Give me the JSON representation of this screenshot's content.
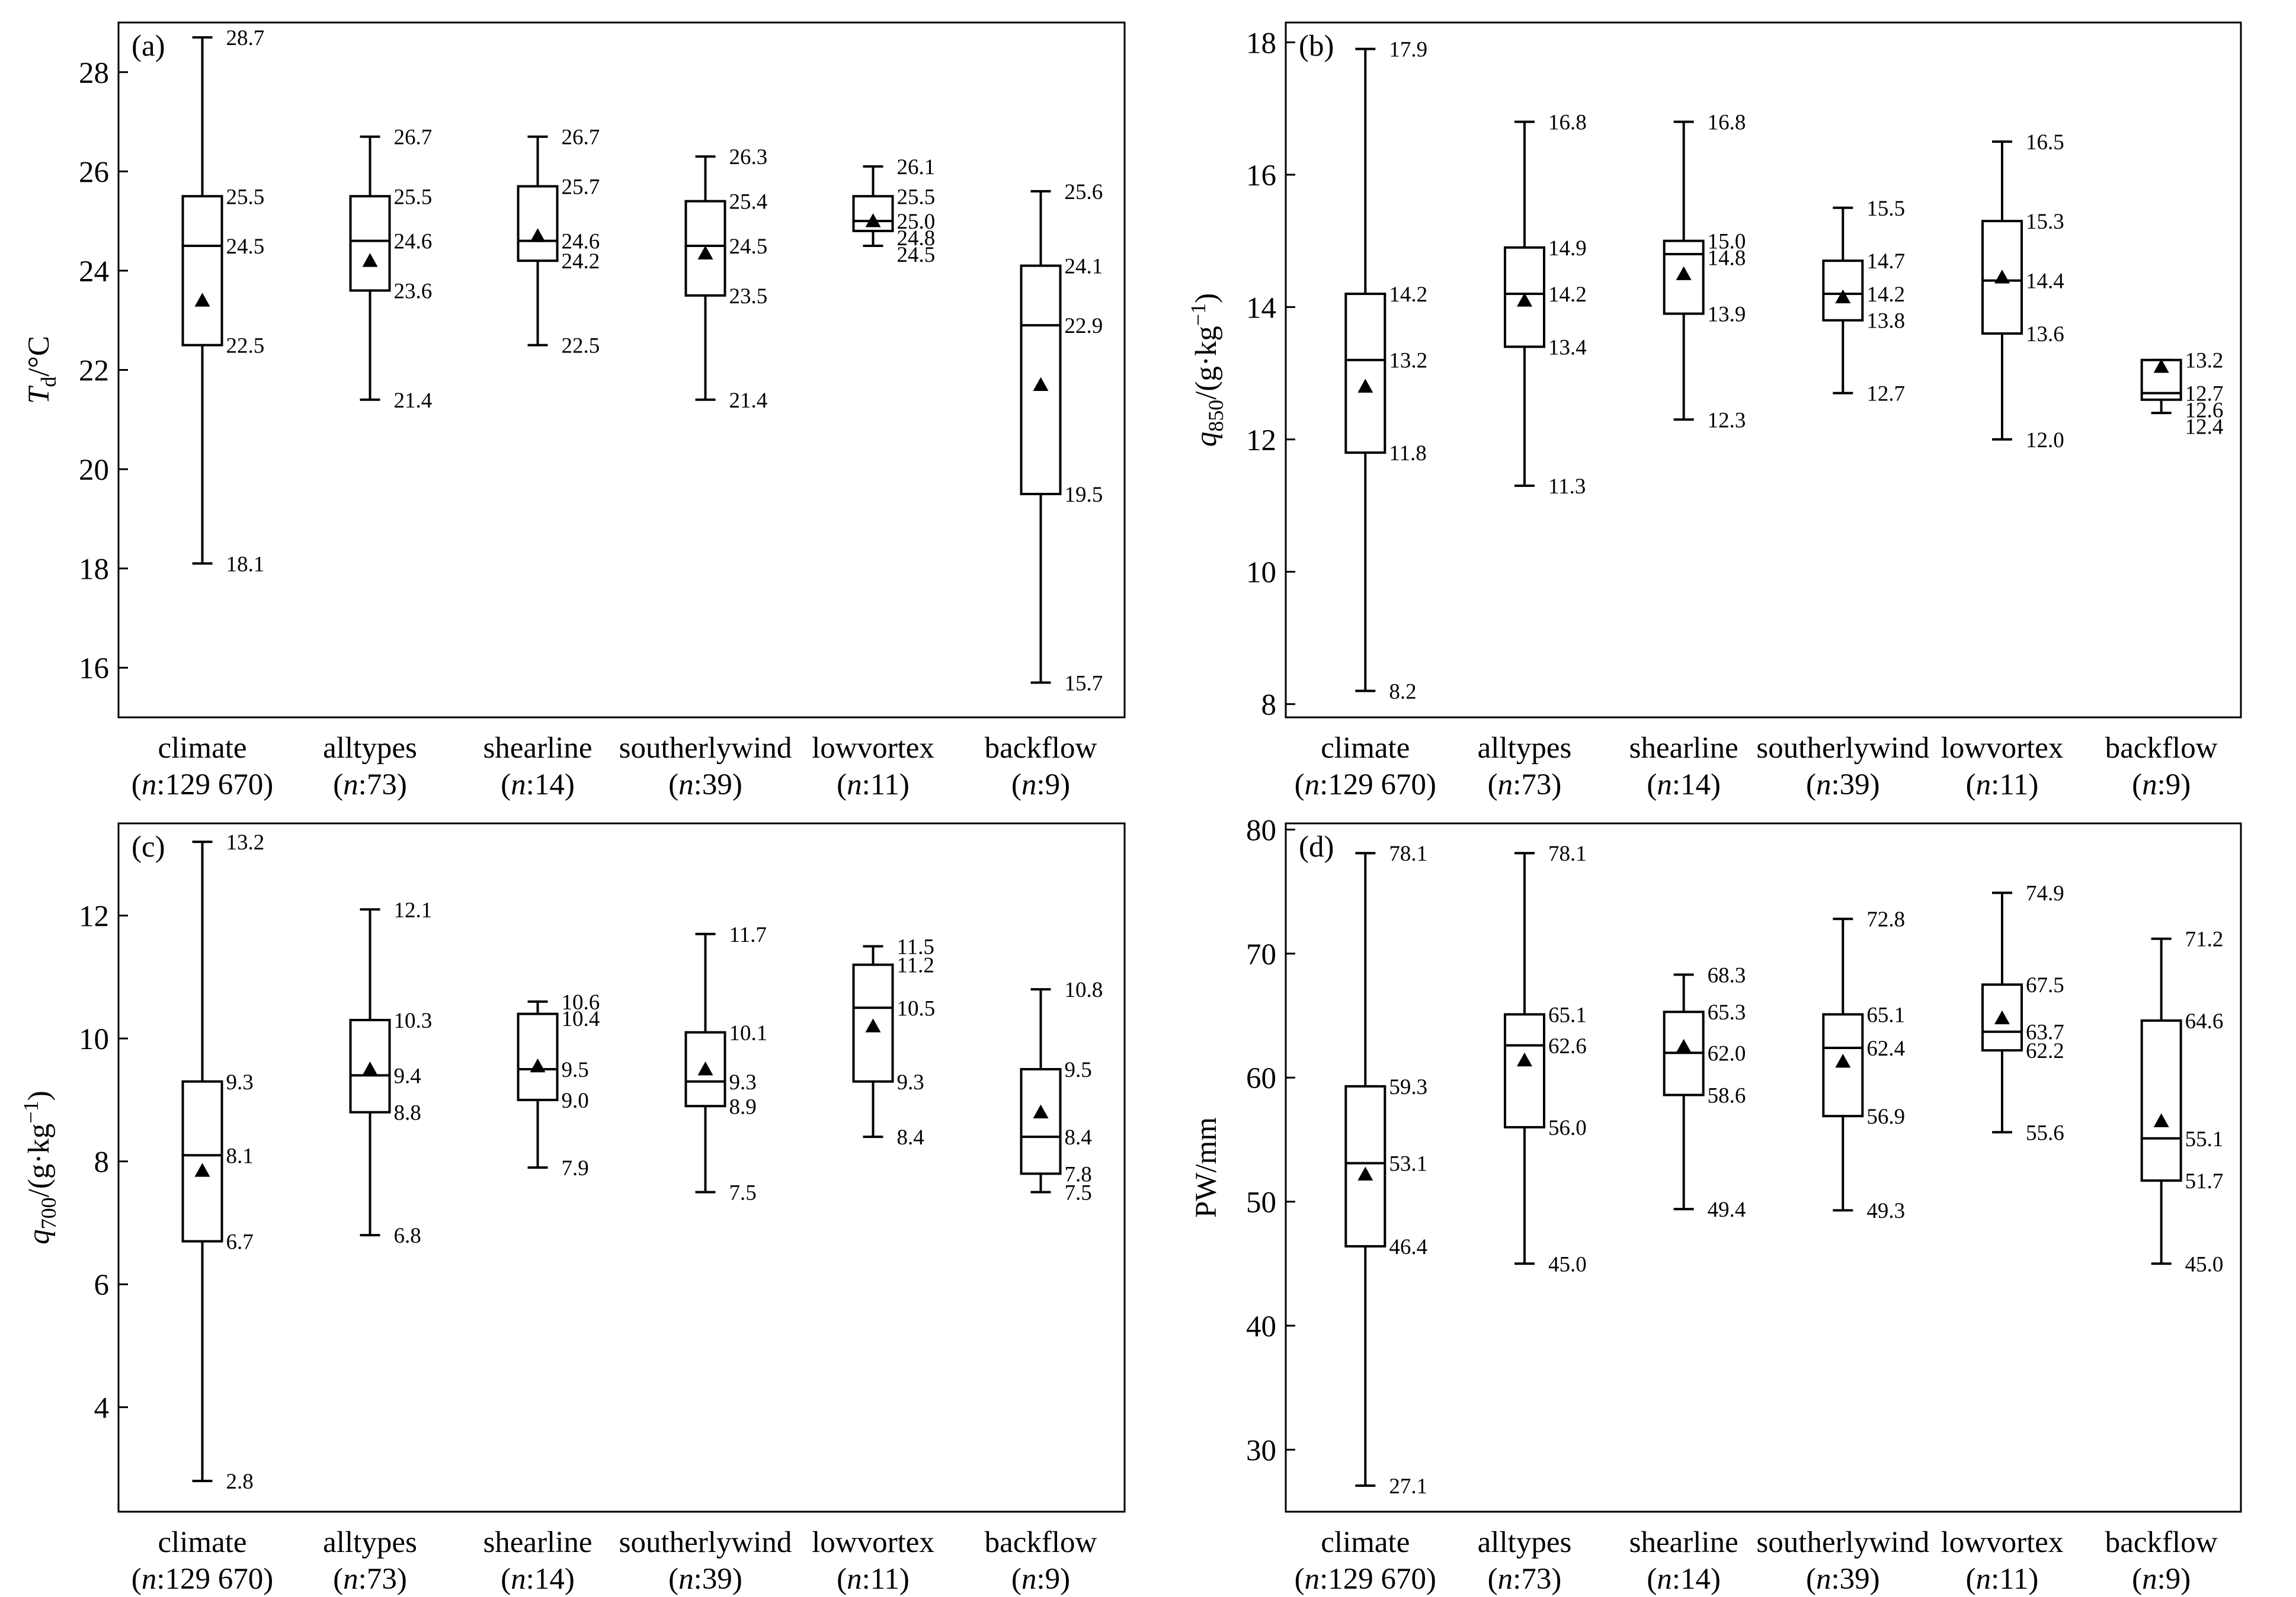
{
  "chart_data": [
    {
      "type": "box",
      "panel_label": "(a)",
      "ylabel": {
        "main": "T",
        "sub": "d",
        "rest": "/°C"
      },
      "ylim": [
        15,
        29
      ],
      "yticks": [
        16,
        18,
        20,
        22,
        24,
        26,
        28
      ],
      "categories": [
        {
          "name": "climate",
          "n_prefix": "n",
          "n_value": ":129 670"
        },
        {
          "name": "alltypes",
          "n_prefix": "n",
          "n_value": ":73"
        },
        {
          "name": "shearline",
          "n_prefix": "n",
          "n_value": ":14"
        },
        {
          "name": "southerlywind",
          "n_prefix": "n",
          "n_value": ":39"
        },
        {
          "name": "lowvortex",
          "n_prefix": "n",
          "n_value": ":11"
        },
        {
          "name": "backflow",
          "n_prefix": "n",
          "n_value": ":9"
        }
      ],
      "boxes": [
        {
          "max": 28.7,
          "q3": 25.5,
          "median": 24.5,
          "q1": 22.5,
          "min": 18.1,
          "mean": 23.4,
          "labels": {
            "max": "28.7",
            "q3": "25.5",
            "median": "24.5",
            "q1": "22.5",
            "min": "18.1"
          }
        },
        {
          "max": 26.7,
          "q3": 25.5,
          "median": 24.6,
          "q1": 23.6,
          "min": 21.4,
          "mean": 24.2,
          "labels": {
            "max": "26.7",
            "q3": "25.5",
            "median": "24.6",
            "q1": "23.6",
            "min": "21.4"
          }
        },
        {
          "max": 26.7,
          "q3": 25.7,
          "median": 24.6,
          "q1": 24.2,
          "min": 22.5,
          "mean": 24.7,
          "labels": {
            "max": "26.7",
            "q3": "25.7",
            "median": "24.6",
            "q1": "24.2",
            "min": "22.5"
          }
        },
        {
          "max": 26.3,
          "q3": 25.4,
          "median": 24.5,
          "q1": 23.5,
          "min": 21.4,
          "mean": 24.35,
          "labels": {
            "max": "26.3",
            "q3": "25.4",
            "median": "24.5",
            "q1": "23.5",
            "min": "21.4"
          }
        },
        {
          "max": 26.1,
          "q3": 25.5,
          "median": 25.0,
          "q1": 24.8,
          "min": 24.5,
          "mean": 25.0,
          "labels": {
            "max": "26.1",
            "q3": "25.5",
            "median": "25.0",
            "q1": "24.8",
            "min": "24.5"
          }
        },
        {
          "max": 25.6,
          "q3": 24.1,
          "median": 22.9,
          "q1": 19.5,
          "min": 15.7,
          "mean": 21.7,
          "labels": {
            "max": "25.6",
            "q3": "24.1",
            "median": "22.9",
            "q1": "19.5",
            "min": "15.7"
          }
        }
      ]
    },
    {
      "type": "box",
      "panel_label": "(b)",
      "ylabel": {
        "main": "q",
        "sub": "850",
        "rest": "/(g·kg",
        "sup": "−1",
        "close": ")"
      },
      "ylim": [
        7.8,
        18.3
      ],
      "yticks": [
        8,
        10,
        12,
        14,
        16,
        18
      ],
      "categories": [
        {
          "name": "climate",
          "n_prefix": "n",
          "n_value": ":129 670"
        },
        {
          "name": "alltypes",
          "n_prefix": "n",
          "n_value": ":73"
        },
        {
          "name": "shearline",
          "n_prefix": "n",
          "n_value": ":14"
        },
        {
          "name": "southerlywind",
          "n_prefix": "n",
          "n_value": ":39"
        },
        {
          "name": "lowvortex",
          "n_prefix": "n",
          "n_value": ":11"
        },
        {
          "name": "backflow",
          "n_prefix": "n",
          "n_value": ":9"
        }
      ],
      "boxes": [
        {
          "max": 17.9,
          "q3": 14.2,
          "median": 13.2,
          "q1": 11.8,
          "min": 8.2,
          "mean": 12.8,
          "labels": {
            "max": "17.9",
            "q3": "14.2",
            "median": "13.2",
            "q1": "11.8",
            "min": "8.2"
          }
        },
        {
          "max": 16.8,
          "q3": 14.9,
          "median": 14.2,
          "q1": 13.4,
          "min": 11.3,
          "mean": 14.1,
          "labels": {
            "max": "16.8",
            "q3": "14.9",
            "median": "14.2",
            "q1": "13.4",
            "min": "11.3"
          }
        },
        {
          "max": 16.8,
          "q3": 15.0,
          "median": 14.8,
          "q1": 13.9,
          "min": 12.3,
          "mean": 14.5,
          "labels": {
            "max": "16.8",
            "q3": "15.0",
            "median": "14.8",
            "q1": "13.9",
            "min": "12.3"
          }
        },
        {
          "max": 15.5,
          "q3": 14.7,
          "median": 14.2,
          "q1": 13.8,
          "min": 12.7,
          "mean": 14.15,
          "labels": {
            "max": "15.5",
            "q3": "14.7",
            "median": "14.2",
            "q1": "13.8",
            "min": "12.7"
          }
        },
        {
          "max": 16.5,
          "q3": 15.3,
          "median": 14.4,
          "q1": 13.6,
          "min": 12.0,
          "mean": 14.45,
          "labels": {
            "max": "16.5",
            "q3": "15.3",
            "median": "14.4",
            "q1": "13.6",
            "min": "12.0"
          }
        },
        {
          "max": 13.2,
          "q3": 13.2,
          "median": 12.7,
          "q1": 12.6,
          "min": 12.4,
          "mean": 13.1,
          "labels": {
            "max": "13.2",
            "q3": "",
            "median": "12.7",
            "q1": "12.6",
            "min": "12.4"
          }
        }
      ]
    },
    {
      "type": "box",
      "panel_label": "(c)",
      "ylabel": {
        "main": "q",
        "sub": "700",
        "rest": "/(g·kg",
        "sup": "−1",
        "close": ")"
      },
      "ylim": [
        2.3,
        13.5
      ],
      "yticks": [
        4,
        6,
        8,
        10,
        12
      ],
      "categories": [
        {
          "name": "climate",
          "n_prefix": "n",
          "n_value": ":129 670"
        },
        {
          "name": "alltypes",
          "n_prefix": "n",
          "n_value": ":73"
        },
        {
          "name": "shearline",
          "n_prefix": "n",
          "n_value": ":14"
        },
        {
          "name": "southerlywind",
          "n_prefix": "n",
          "n_value": ":39"
        },
        {
          "name": "lowvortex",
          "n_prefix": "n",
          "n_value": ":11"
        },
        {
          "name": "backflow",
          "n_prefix": "n",
          "n_value": ":9"
        }
      ],
      "boxes": [
        {
          "max": 13.2,
          "q3": 9.3,
          "median": 8.1,
          "q1": 6.7,
          "min": 2.8,
          "mean": 7.85,
          "labels": {
            "max": "13.2",
            "q3": "9.3",
            "median": "8.1",
            "q1": "6.7",
            "min": "2.8"
          }
        },
        {
          "max": 12.1,
          "q3": 10.3,
          "median": 9.4,
          "q1": 8.8,
          "min": 6.8,
          "mean": 9.5,
          "labels": {
            "max": "12.1",
            "q3": "10.3",
            "median": "9.4",
            "q1": "8.8",
            "min": "6.8"
          }
        },
        {
          "max": 10.6,
          "q3": 10.4,
          "median": 9.5,
          "q1": 9.0,
          "min": 7.9,
          "mean": 9.55,
          "labels": {
            "max": "10.6",
            "q3": "10.4",
            "median": "9.5",
            "q1": "9.0",
            "min": "7.9"
          }
        },
        {
          "max": 11.7,
          "q3": 10.1,
          "median": 9.3,
          "q1": 8.9,
          "min": 7.5,
          "mean": 9.5,
          "labels": {
            "max": "11.7",
            "q3": "10.1",
            "median": "9.3",
            "q1": "8.9",
            "min": "7.5"
          }
        },
        {
          "max": 11.5,
          "q3": 11.2,
          "median": 10.5,
          "q1": 9.3,
          "min": 8.4,
          "mean": 10.2,
          "labels": {
            "max": "11.5",
            "q3": "11.2",
            "median": "10.5",
            "q1": "9.3",
            "min": "8.4"
          }
        },
        {
          "max": 10.8,
          "q3": 9.5,
          "median": 8.4,
          "q1": 7.8,
          "min": 7.5,
          "mean": 8.8,
          "labels": {
            "max": "10.8",
            "q3": "9.5",
            "median": "8.4",
            "q1": "7.8",
            "min": "7.5"
          }
        }
      ]
    },
    {
      "type": "box",
      "panel_label": "(d)",
      "ylabel": {
        "main": "PW/mm"
      },
      "ylim": [
        25,
        80.5
      ],
      "yticks": [
        30,
        40,
        50,
        60,
        70,
        80
      ],
      "categories": [
        {
          "name": "climate",
          "n_prefix": "n",
          "n_value": ":129 670"
        },
        {
          "name": "alltypes",
          "n_prefix": "n",
          "n_value": ":73"
        },
        {
          "name": "shearline",
          "n_prefix": "n",
          "n_value": ":14"
        },
        {
          "name": "southerlywind",
          "n_prefix": "n",
          "n_value": ":39"
        },
        {
          "name": "lowvortex",
          "n_prefix": "n",
          "n_value": ":11"
        },
        {
          "name": "backflow",
          "n_prefix": "n",
          "n_value": ":9"
        }
      ],
      "boxes": [
        {
          "max": 78.1,
          "q3": 59.3,
          "median": 53.1,
          "q1": 46.4,
          "min": 27.1,
          "mean": 52.2,
          "labels": {
            "max": "78.1",
            "q3": "59.3",
            "median": "53.1",
            "q1": "46.4",
            "min": "27.1"
          }
        },
        {
          "max": 78.1,
          "q3": 65.1,
          "median": 62.6,
          "q1": 56.0,
          "min": 45.0,
          "mean": 61.4,
          "labels": {
            "max": "78.1",
            "q3": "65.1",
            "median": "62.6",
            "q1": "56.0",
            "min": "45.0"
          }
        },
        {
          "max": 68.3,
          "q3": 65.3,
          "median": 62.0,
          "q1": 58.6,
          "min": 49.4,
          "mean": 62.5,
          "labels": {
            "max": "68.3",
            "q3": "65.3",
            "median": "62.0",
            "q1": "58.6",
            "min": "49.4"
          }
        },
        {
          "max": 72.8,
          "q3": 65.1,
          "median": 62.4,
          "q1": 56.9,
          "min": 49.3,
          "mean": 61.3,
          "labels": {
            "max": "72.8",
            "q3": "65.1",
            "median": "62.4",
            "q1": "56.9",
            "min": "49.3"
          }
        },
        {
          "max": 74.9,
          "q3": 67.5,
          "median": 63.7,
          "q1": 62.2,
          "min": 55.6,
          "mean": 64.8,
          "labels": {
            "max": "74.9",
            "q3": "67.5",
            "median": "63.7",
            "q1": "62.2",
            "min": "55.6"
          }
        },
        {
          "max": 71.2,
          "q3": 64.6,
          "median": 55.1,
          "q1": 51.7,
          "min": 45.0,
          "mean": 56.5,
          "labels": {
            "max": "71.2",
            "q3": "64.6",
            "median": "55.1",
            "q1": "51.7",
            "min": "45.0"
          }
        }
      ]
    }
  ]
}
